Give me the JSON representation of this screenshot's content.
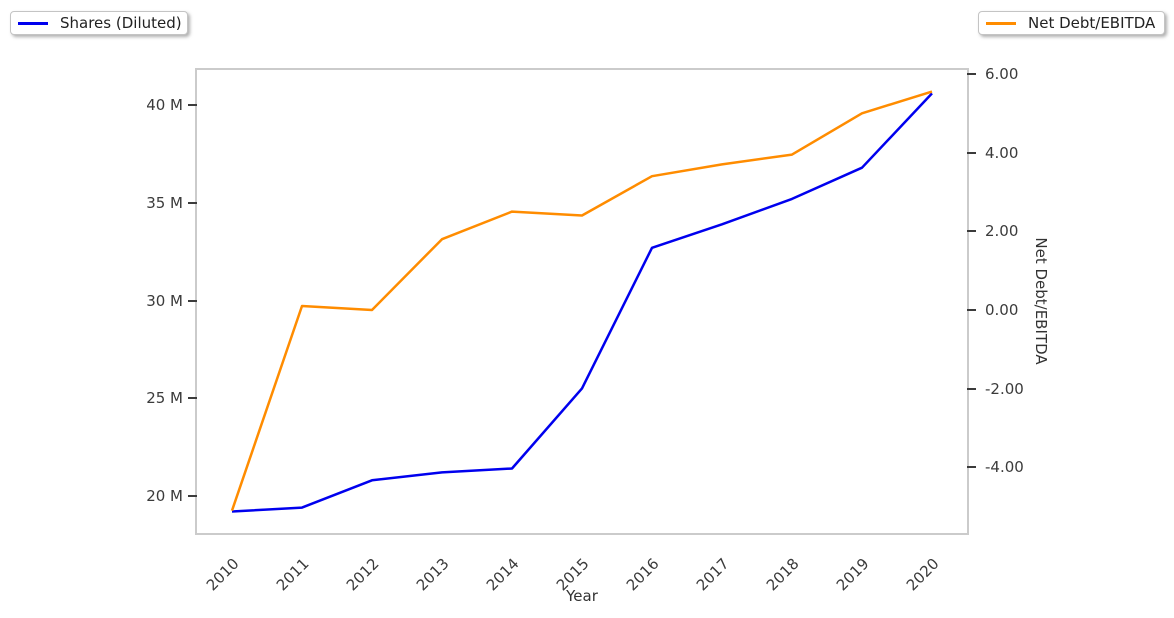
{
  "legend_left": {
    "label": "Shares (Diluted)",
    "color": "#0000ee"
  },
  "legend_right": {
    "label": "Net Debt/EBITDA",
    "color": "#ff8c00"
  },
  "chart_data": {
    "type": "line",
    "x": [
      "2010",
      "2011",
      "2012",
      "2013",
      "2014",
      "2015",
      "2016",
      "2017",
      "2018",
      "2019",
      "2020"
    ],
    "xlabel": "Year",
    "series": [
      {
        "name": "Shares (Diluted)",
        "axis": "left",
        "color": "#0000ee",
        "unit": "M",
        "values": [
          19.2,
          19.4,
          20.8,
          21.2,
          21.4,
          25.5,
          32.7,
          33.9,
          35.2,
          36.8,
          40.6
        ]
      },
      {
        "name": "Net Debt/EBITDA",
        "axis": "right",
        "color": "#ff8c00",
        "values": [
          -5.1,
          0.1,
          0.0,
          1.8,
          2.5,
          2.4,
          3.4,
          3.7,
          3.95,
          5.0,
          5.55
        ]
      }
    ],
    "left_axis": {
      "ticks": [
        20,
        25,
        30,
        35,
        40
      ],
      "tick_labels": [
        "20 M",
        "25 M",
        "30 M",
        "35 M",
        "40 M"
      ],
      "range": [
        18.1,
        41.8
      ]
    },
    "right_axis": {
      "label": "Net Debt/EBITDA",
      "ticks": [
        -4,
        -2,
        0,
        2,
        4,
        6
      ],
      "tick_labels": [
        "-4.00",
        "-2.00",
        "0.00",
        "2.00",
        "4.00",
        "6.00"
      ],
      "range": [
        -5.67,
        6.1
      ]
    },
    "grid": false,
    "legend_position": "top-left and top-right, outside plot",
    "colors": {
      "plot_border": "#cbcbcb",
      "tick_text": "#3b3b3b"
    }
  }
}
